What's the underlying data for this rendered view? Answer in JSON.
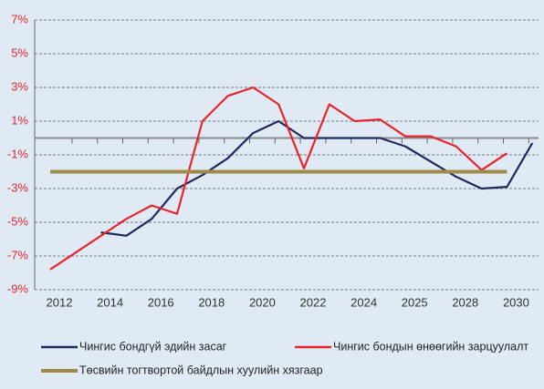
{
  "chart_data": {
    "type": "line",
    "categories": [
      "2012",
      null,
      "2014",
      null,
      "2016",
      null,
      "2018",
      null,
      "2020",
      null,
      "2022",
      null,
      "2024",
      null,
      "2025",
      null,
      "2028",
      null,
      "2030",
      null
    ],
    "series": [
      {
        "name": "Чингис бондгүй эдийн засаг",
        "color": "#1f2a5e",
        "values": [
          null,
          null,
          -5.6,
          -5.8,
          -4.8,
          -3.0,
          -2.2,
          -1.2,
          0.3,
          1.0,
          0.0,
          0.0,
          0.0,
          0.0,
          -0.5,
          -1.4,
          -2.3,
          -3.0,
          -2.9,
          -0.3
        ]
      },
      {
        "name": "Чингис бондын өнөөгийн зарцуулалт",
        "color": "#e8242b",
        "values": [
          -7.8,
          -6.8,
          -5.8,
          -4.8,
          -4.0,
          -4.5,
          1.0,
          2.5,
          3.0,
          2.0,
          -1.8,
          2.0,
          1.0,
          1.1,
          0.1,
          0.1,
          -0.5,
          -1.9,
          -0.9,
          null
        ]
      },
      {
        "name": "Төсвийн тогтвортой байдлын хуулийн хязгаар",
        "color": "#a08a4a",
        "values": [
          -2,
          -2,
          -2,
          -2,
          -2,
          -2,
          -2,
          -2,
          -2,
          -2,
          -2,
          -2,
          -2,
          -2,
          -2,
          -2,
          -2,
          -2,
          -2,
          null
        ]
      }
    ],
    "ylim": [
      -9,
      7
    ],
    "yticks": [
      {
        "value": 7,
        "label": "7%"
      },
      {
        "value": 5,
        "label": "5%"
      },
      {
        "value": 3,
        "label": "3%"
      },
      {
        "value": 1,
        "label": "1%"
      },
      {
        "value": -1,
        "label": "-1%"
      },
      {
        "value": -3,
        "label": "-3%"
      },
      {
        "value": -5,
        "label": "-5%"
      },
      {
        "value": -7,
        "label": "-7%"
      },
      {
        "value": -9,
        "label": "-9%"
      }
    ],
    "grid": true
  }
}
